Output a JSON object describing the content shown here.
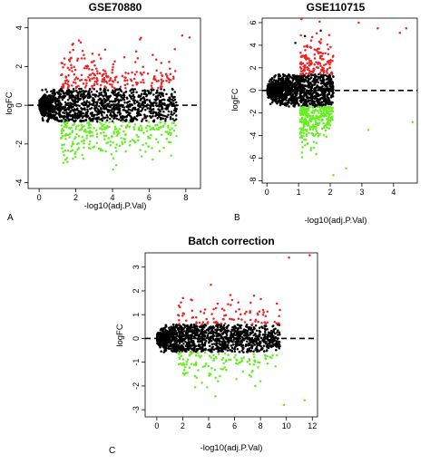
{
  "colors": {
    "up": "#ee2222",
    "down": "#66ee22",
    "ns": "#000000",
    "threshold_line": "#000000"
  },
  "chart_data": [
    {
      "type": "scatter",
      "panel_label": "A",
      "title": "GSE70880",
      "xlabel": "-log10(adj.P.Val)",
      "ylabel": "logFC",
      "xlim": [
        -0.6,
        8.8
      ],
      "ylim": [
        -4.3,
        4.5
      ],
      "xticks": [
        0,
        2,
        4,
        6,
        8
      ],
      "yticks": [
        -4,
        -2,
        0,
        2,
        4
      ],
      "grid": false,
      "reference_line": {
        "y": 0,
        "style": "dashed"
      },
      "cloud": {
        "x_max": 7.5,
        "y_peak": 1.9,
        "x_peak": 1.6
      },
      "series": [
        {
          "color_key": "ns",
          "count": 1400
        },
        {
          "color_key": "up",
          "count": 220,
          "points": [
            [
              6.8,
              4.5
            ],
            [
              8.2,
              3.5
            ],
            [
              6.2,
              2.6
            ],
            [
              7.4,
              2.9
            ],
            [
              5.5,
              3.4
            ],
            [
              7.8,
              3.6
            ]
          ]
        },
        {
          "color_key": "down",
          "count": 260,
          "points": [
            [
              6.8,
              -2.2
            ],
            [
              7.2,
              -2.6
            ],
            [
              6.2,
              -2.8
            ],
            [
              5.8,
              -2.4
            ]
          ]
        }
      ]
    },
    {
      "type": "scatter",
      "panel_label": "B",
      "title": "GSE110715",
      "xlabel": "-log10(adj.P.Val)",
      "ylabel": "logFC",
      "xlim": [
        -0.15,
        4.75
      ],
      "ylim": [
        -8.2,
        6.4
      ],
      "xticks": [
        0,
        1,
        2,
        3,
        4
      ],
      "yticks": [
        -8,
        -6,
        -4,
        -2,
        0,
        2,
        4,
        6
      ],
      "grid": false,
      "reference_line": {
        "y": 0,
        "style": "dashed"
      },
      "cloud": {
        "x_max": 2.1,
        "y_peak": 3.2,
        "x_peak": 1.4
      },
      "series": [
        {
          "color_key": "ns",
          "count": 1500,
          "points": [
            [
              1.7,
              5.3
            ],
            [
              1.2,
              4.8
            ],
            [
              0.9,
              4.2
            ]
          ]
        },
        {
          "color_key": "up",
          "count": 140,
          "points": [
            [
              4.2,
              5.1
            ],
            [
              4.4,
              5.5
            ],
            [
              2.9,
              6.0
            ],
            [
              3.5,
              5.5
            ]
          ]
        },
        {
          "color_key": "down",
          "count": 280,
          "points": [
            [
              4.6,
              -2.8
            ],
            [
              3.2,
              -3.5
            ],
            [
              2.5,
              -6.9
            ],
            [
              2.1,
              -7.5
            ]
          ]
        }
      ]
    },
    {
      "type": "scatter",
      "panel_label": "C",
      "title": "Batch correction",
      "xlabel": "-log10(adj.P.Val)",
      "ylabel": "logFC",
      "xlim": [
        -0.9,
        12.4
      ],
      "ylim": [
        -3.3,
        3.6
      ],
      "xticks": [
        0,
        2,
        4,
        6,
        8,
        10,
        12
      ],
      "yticks": [
        -3,
        -2,
        -1,
        0,
        1,
        2,
        3
      ],
      "grid": false,
      "reference_line": {
        "y": 0,
        "style": "dashed"
      },
      "cloud": {
        "x_max": 9.5,
        "y_peak": 1.3,
        "x_peak": 2.2
      },
      "series": [
        {
          "color_key": "ns",
          "count": 1500
        },
        {
          "color_key": "up",
          "count": 90,
          "points": [
            [
              10.2,
              3.4
            ],
            [
              11.8,
              3.5
            ],
            [
              7.5,
              1.8
            ],
            [
              8.2,
              1.2
            ],
            [
              9.5,
              1.2
            ]
          ]
        },
        {
          "color_key": "down",
          "count": 120,
          "points": [
            [
              11.4,
              -2.6
            ],
            [
              9.8,
              -2.8
            ],
            [
              8.0,
              -1.8
            ],
            [
              7.6,
              -2.0
            ]
          ]
        }
      ]
    }
  ]
}
